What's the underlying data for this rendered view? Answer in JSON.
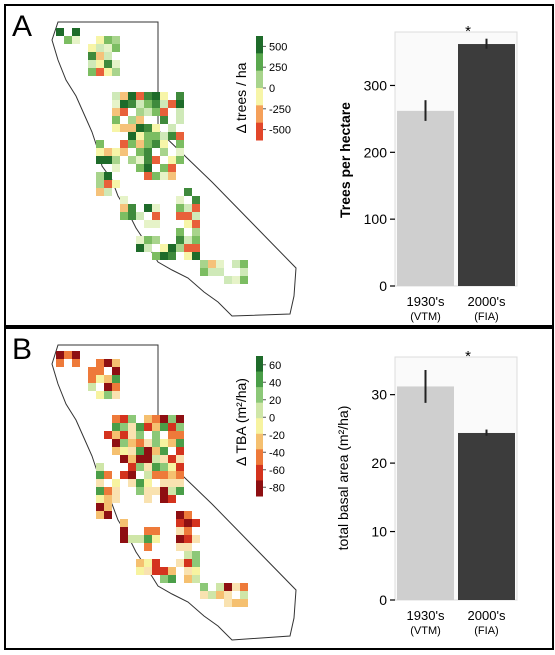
{
  "panels": [
    {
      "label": "A",
      "map": {
        "legend_title": "Δ trees / ha",
        "legend_ticks": [
          "500",
          "250",
          "0",
          "-250",
          "-500"
        ],
        "legend_colors": [
          "#1e6b2a",
          "#5aa84e",
          "#a8d48c",
          "#f7f5a8",
          "#f5a05a",
          "#e2462a"
        ]
      },
      "chart_data": {
        "type": "bar",
        "categories": [
          "1930's",
          "2000's"
        ],
        "category_sublabels": [
          "(VTM)",
          "(FIA)"
        ],
        "values": [
          262,
          362
        ],
        "error_low": [
          247,
          355
        ],
        "error_high": [
          278,
          370
        ],
        "ylabel": "Trees per hectare",
        "yticks": [
          0,
          100,
          200,
          300
        ],
        "ylim": [
          0,
          380
        ],
        "significance": "*",
        "colors": [
          "#cfcfcf",
          "#3c3c3c"
        ],
        "grid": false
      }
    },
    {
      "label": "B",
      "map": {
        "legend_title": "Δ TBA (m²/ha)",
        "legend_ticks": [
          "60",
          "40",
          "20",
          "0",
          "-20",
          "-40",
          "-60",
          "-80"
        ],
        "legend_colors": [
          "#1e6b2a",
          "#4a9e48",
          "#8cc878",
          "#cfe6a8",
          "#f7f3a0",
          "#f5c070",
          "#ee7a3a",
          "#d4331e",
          "#8e0f12"
        ]
      },
      "chart_data": {
        "type": "bar",
        "categories": [
          "1930's",
          "2000's"
        ],
        "category_sublabels": [
          "(VTM)",
          "(FIA)"
        ],
        "values": [
          31.2,
          24.4
        ],
        "error_low": [
          28.8,
          24.0
        ],
        "error_high": [
          33.6,
          24.9
        ],
        "ylabel": "total basal area (m²/ha)",
        "yticks": [
          0,
          10,
          20,
          30
        ],
        "ylim": [
          0,
          35.5
        ],
        "significance": "*",
        "colors": [
          "#cfcfcf",
          "#3c3c3c"
        ],
        "grid": false
      }
    }
  ]
}
